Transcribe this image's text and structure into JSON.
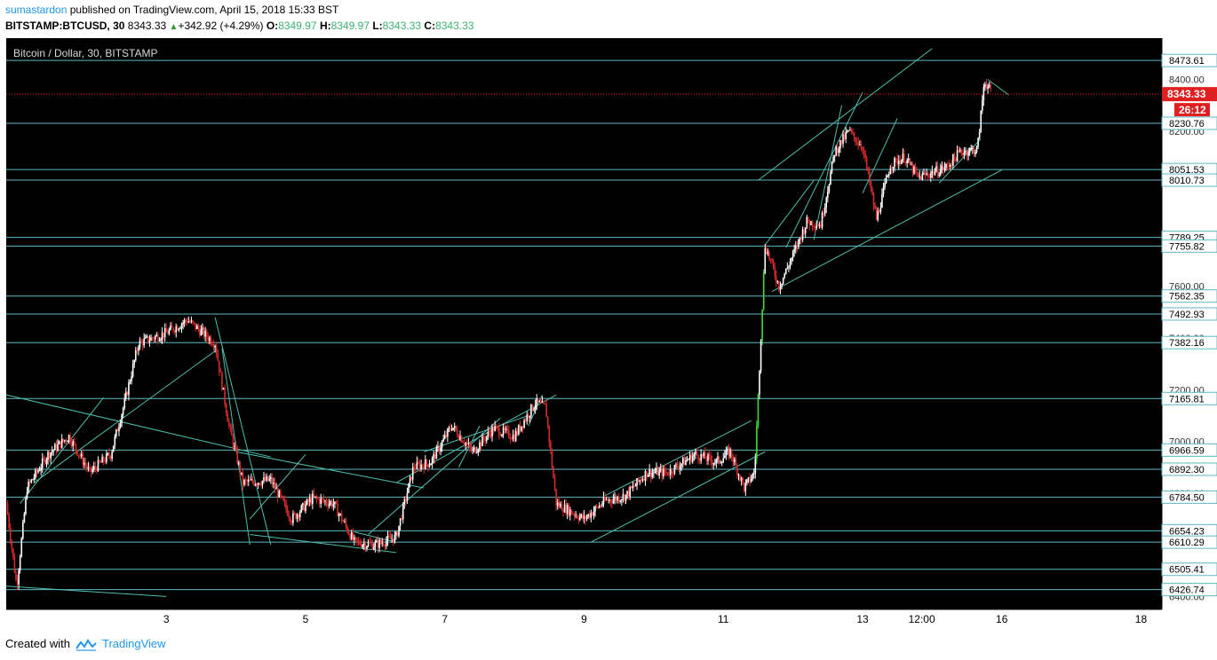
{
  "header": {
    "author": "sumastardon",
    "published_text": "published on TradingView.com, April 15, 2018 15:33 BST",
    "symbol": "BITSTAMP:BTCUSD, 30",
    "price": "8343.33",
    "change": "+342.92 (+4.29%)",
    "o_label": "O:",
    "o_value": "8349.97",
    "h_label": "H:",
    "h_value": "8349.97",
    "l_label": "L:",
    "l_value": "8343.33",
    "c_label": "C:",
    "c_value": "8343.33"
  },
  "footer": {
    "created_with": "Created with",
    "brand": "TradingView"
  },
  "colors": {
    "background": "#000000",
    "level_line": "#5fb8c2",
    "trend_line": "#4dbfae",
    "bull_candle": "#ffffff",
    "bear_candle": "#d72b2b",
    "up_move": "#3ddc3d",
    "current_price": "#e02020",
    "axis_text": "#000000"
  },
  "chart_data": {
    "type": "candlestick",
    "title": "Bitcoin / Dollar, 30, BITSTAMP",
    "ylim": [
      6350,
      8560
    ],
    "current_price": {
      "label": "8343.33",
      "value": 8343.33
    },
    "countdown": "26:12",
    "levels": [
      8473.61,
      8230.76,
      8051.53,
      8010.73,
      7789.25,
      7755.82,
      7562.35,
      7492.93,
      7382.16,
      7165.81,
      6966.59,
      6892.3,
      6784.5,
      6654.23,
      6610.29,
      6505.41,
      6426.74
    ],
    "price_ticks": [
      8400.0,
      8200.0,
      8000.0,
      7800.0,
      7600.0,
      7400.0,
      7200.0,
      7000.0,
      6800.0,
      6600.0,
      6400.0
    ],
    "x_ticks": [
      "3",
      "5",
      "7",
      "9",
      "11",
      "13",
      "12:00",
      "16",
      "18"
    ],
    "price_path": [
      {
        "x": 0,
        "p": 6760
      },
      {
        "x": 0.15,
        "p": 6440
      },
      {
        "x": 0.3,
        "p": 6820
      },
      {
        "x": 0.6,
        "p": 6950
      },
      {
        "x": 0.9,
        "p": 7020
      },
      {
        "x": 1.2,
        "p": 6880
      },
      {
        "x": 1.5,
        "p": 6950
      },
      {
        "x": 1.7,
        "p": 7150
      },
      {
        "x": 1.9,
        "p": 7380
      },
      {
        "x": 2.3,
        "p": 7420
      },
      {
        "x": 2.6,
        "p": 7470
      },
      {
        "x": 3.0,
        "p": 7380
      },
      {
        "x": 3.2,
        "p": 7060
      },
      {
        "x": 3.4,
        "p": 6840
      },
      {
        "x": 3.8,
        "p": 6850
      },
      {
        "x": 4.1,
        "p": 6700
      },
      {
        "x": 4.4,
        "p": 6780
      },
      {
        "x": 4.7,
        "p": 6760
      },
      {
        "x": 5.0,
        "p": 6610
      },
      {
        "x": 5.3,
        "p": 6600
      },
      {
        "x": 5.6,
        "p": 6630
      },
      {
        "x": 5.85,
        "p": 6900
      },
      {
        "x": 6.1,
        "p": 6920
      },
      {
        "x": 6.4,
        "p": 7060
      },
      {
        "x": 6.7,
        "p": 6960
      },
      {
        "x": 7.0,
        "p": 7050
      },
      {
        "x": 7.3,
        "p": 7020
      },
      {
        "x": 7.6,
        "p": 7150
      },
      {
        "x": 7.75,
        "p": 7130
      },
      {
        "x": 7.9,
        "p": 6760
      },
      {
        "x": 8.3,
        "p": 6700
      },
      {
        "x": 8.6,
        "p": 6770
      },
      {
        "x": 8.9,
        "p": 6790
      },
      {
        "x": 9.2,
        "p": 6880
      },
      {
        "x": 9.5,
        "p": 6880
      },
      {
        "x": 9.9,
        "p": 6950
      },
      {
        "x": 10.2,
        "p": 6920
      },
      {
        "x": 10.4,
        "p": 6960
      },
      {
        "x": 10.6,
        "p": 6820
      },
      {
        "x": 10.75,
        "p": 6880
      },
      {
        "x": 10.9,
        "p": 7760
      },
      {
        "x": 11.1,
        "p": 7600
      },
      {
        "x": 11.3,
        "p": 7720
      },
      {
        "x": 11.5,
        "p": 7850
      },
      {
        "x": 11.7,
        "p": 7840
      },
      {
        "x": 11.9,
        "p": 8120
      },
      {
        "x": 12.1,
        "p": 8200
      },
      {
        "x": 12.3,
        "p": 8140
      },
      {
        "x": 12.5,
        "p": 7860
      },
      {
        "x": 12.7,
        "p": 8070
      },
      {
        "x": 12.9,
        "p": 8100
      },
      {
        "x": 13.1,
        "p": 8020
      },
      {
        "x": 13.3,
        "p": 8040
      },
      {
        "x": 13.5,
        "p": 8060
      },
      {
        "x": 13.7,
        "p": 8120
      },
      {
        "x": 13.95,
        "p": 8130
      },
      {
        "x": 14.05,
        "p": 8400
      },
      {
        "x": 14.15,
        "p": 8343
      }
    ]
  }
}
